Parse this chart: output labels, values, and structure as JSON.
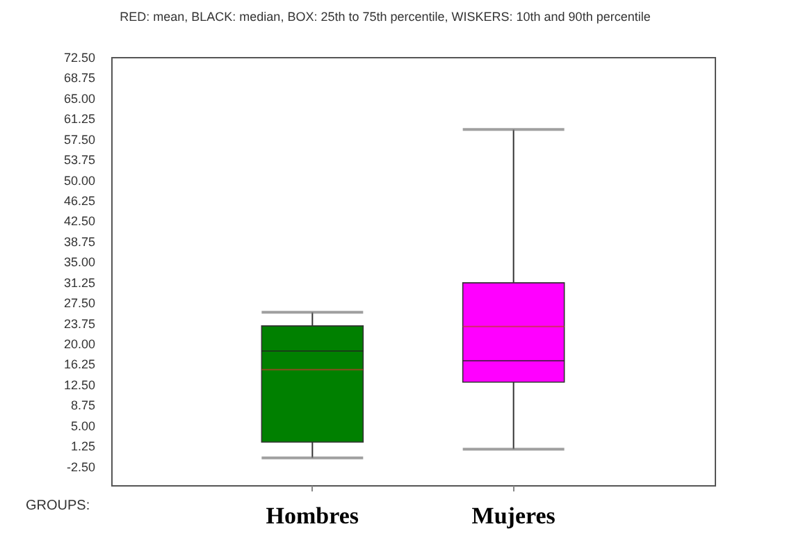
{
  "chart_data": {
    "type": "box",
    "title": "RED: mean, BLACK: median, BOX: 25th to 75th percentile, WISKERS: 10th and 90th percentile",
    "xlabel": "GROUPS:",
    "categories": [
      "Hombres",
      "Mujeres"
    ],
    "colors": [
      "#008000",
      "#ff00ff"
    ],
    "boxes": [
      {
        "low": -1,
        "q1": 1.9,
        "median": 18.6,
        "q3": 23.2,
        "high": 25.7,
        "mean": 15.2
      },
      {
        "low": 0.6,
        "q1": 12.9,
        "median": 16.8,
        "q3": 31.1,
        "high": 59.2,
        "mean": 23.1
      }
    ],
    "ylim": [
      -6,
      72.5
    ],
    "yticks": [
      {
        "value": 72.5,
        "label": "72.50"
      },
      {
        "value": 68.75,
        "label": "68.75"
      },
      {
        "value": 65,
        "label": "65.00"
      },
      {
        "value": 61.25,
        "label": "61.25"
      },
      {
        "value": 57.5,
        "label": "57.50"
      },
      {
        "value": 53.75,
        "label": "53.75"
      },
      {
        "value": 50,
        "label": "50.00"
      },
      {
        "value": 46.25,
        "label": "46.25"
      },
      {
        "value": 42.5,
        "label": "42.50"
      },
      {
        "value": 38.75,
        "label": "38.75"
      },
      {
        "value": 35,
        "label": "35.00"
      },
      {
        "value": 31.25,
        "label": "31.25"
      },
      {
        "value": 27.5,
        "label": "27.50"
      },
      {
        "value": 23.75,
        "label": "23.75"
      },
      {
        "value": 20,
        "label": "20.00"
      },
      {
        "value": 16.25,
        "label": "16.25"
      },
      {
        "value": 12.5,
        "label": "12.50"
      },
      {
        "value": 8.75,
        "label": "8.75"
      },
      {
        "value": 5,
        "label": "5.00"
      },
      {
        "value": 1.25,
        "label": "1.25"
      },
      {
        "value": -2.5,
        "label": "-2.50"
      }
    ],
    "grid": false
  }
}
